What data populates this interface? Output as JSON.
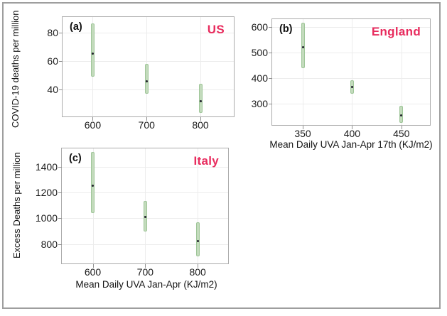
{
  "colors": {
    "bar_fill": "#c3dbbc",
    "bar_edge": "#9fc699",
    "mean_dot": "#20202b",
    "region_accent": "#e82c5e",
    "frame_border": "#9e9e9e",
    "gridline": "#ececec"
  },
  "chart_data": [
    {
      "type": "errorbar",
      "panel_label": "(a)",
      "region": "US",
      "title": "",
      "xlabel": "",
      "ylabel": "COVID-19 deaths per million",
      "x": [
        600,
        700,
        800
      ],
      "mid": [
        65,
        46,
        32
      ],
      "lo": [
        49,
        37,
        24
      ],
      "hi": [
        86,
        58,
        44
      ],
      "xticks": [
        600,
        700,
        800
      ],
      "yticks": [
        40,
        60,
        80
      ],
      "xlim": [
        544,
        862
      ],
      "ylim": [
        21.3,
        90.7
      ],
      "grid": true,
      "legend": "none"
    },
    {
      "type": "errorbar",
      "panel_label": "(b)",
      "region": "England",
      "title": "",
      "xlabel": "Mean Daily UVA Jan-Apr 17th (KJ/m2)",
      "ylabel": "",
      "x": [
        350,
        400,
        450
      ],
      "mid": [
        519,
        364,
        253
      ],
      "lo": [
        438,
        338,
        225
      ],
      "hi": [
        614,
        391,
        291
      ],
      "xticks": [
        350,
        400,
        450
      ],
      "yticks": [
        300,
        400,
        500,
        600
      ],
      "xlim": [
        319,
        479
      ],
      "ylim": [
        216.6,
        629.2
      ],
      "grid": true,
      "legend": "none"
    },
    {
      "type": "errorbar",
      "panel_label": "(c)",
      "region": "Italy",
      "title": "",
      "xlabel": "Mean Daily UVA Jan-Apr (KJ/m2)",
      "ylabel": "Excess Deaths per million",
      "x": [
        600,
        700,
        800
      ],
      "mid": [
        1253,
        1012,
        822
      ],
      "lo": [
        1040,
        898,
        703
      ],
      "hi": [
        1515,
        1137,
        967
      ],
      "xticks": [
        600,
        700,
        800
      ],
      "yticks": [
        800,
        1000,
        1200,
        1400
      ],
      "xlim": [
        541,
        858
      ],
      "ylim": [
        649,
        1543
      ],
      "grid": true,
      "legend": "none"
    }
  ]
}
